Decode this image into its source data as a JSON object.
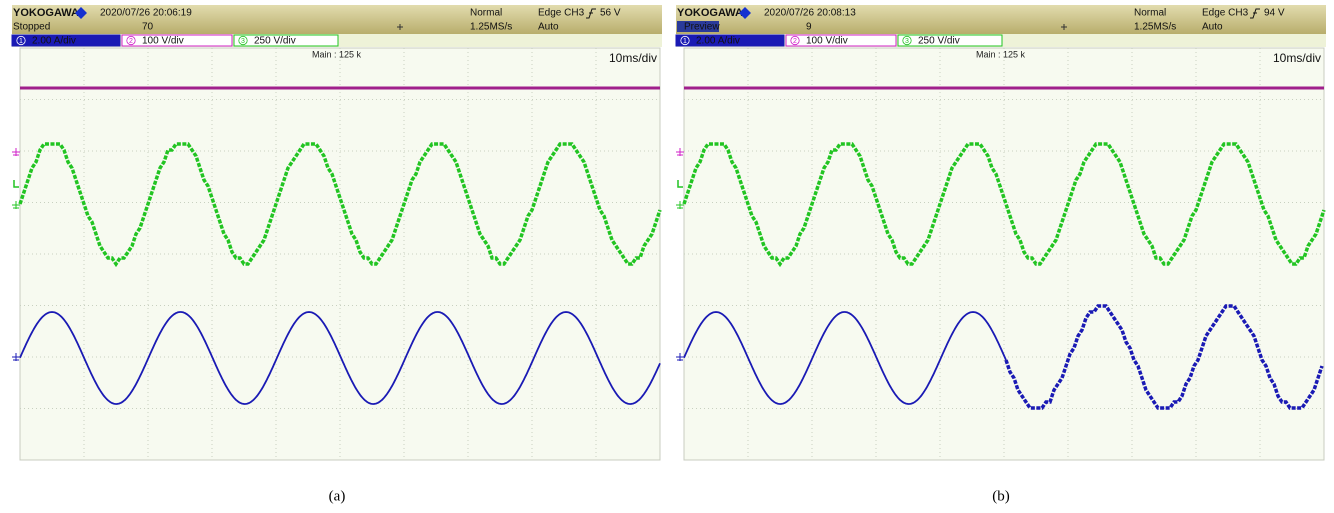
{
  "panels": [
    {
      "brand": "YOKOGAWA",
      "datetime": "2020/07/26 20:06:19",
      "state": "Stopped",
      "count": "70",
      "mode": "Normal",
      "rate": "1.25MS/s",
      "trigger": "Edge CH3",
      "trigger_level": "56 V",
      "trigger_mode": "Auto",
      "channels": [
        {
          "number": "1",
          "scale": "2.00 A/div"
        },
        {
          "number": "2",
          "scale": "100 V/div"
        },
        {
          "number": "3",
          "scale": "250 V/div"
        }
      ],
      "record": "Main : 125 k",
      "timebase": "10ms/div",
      "caption": "(a)"
    },
    {
      "brand": "YOKOGAWA",
      "datetime": "2020/07/26 20:08:13",
      "state": "Preview",
      "count": "9",
      "mode": "Normal",
      "rate": "1.25MS/s",
      "trigger": "Edge CH3",
      "trigger_level": "94 V",
      "trigger_mode": "Auto",
      "channels": [
        {
          "number": "1",
          "scale": "2.00 A/div"
        },
        {
          "number": "2",
          "scale": "100 V/div"
        },
        {
          "number": "3",
          "scale": "250 V/div"
        }
      ],
      "record": "Main : 125 k",
      "timebase": "10ms/div",
      "caption": "(b)"
    }
  ]
}
